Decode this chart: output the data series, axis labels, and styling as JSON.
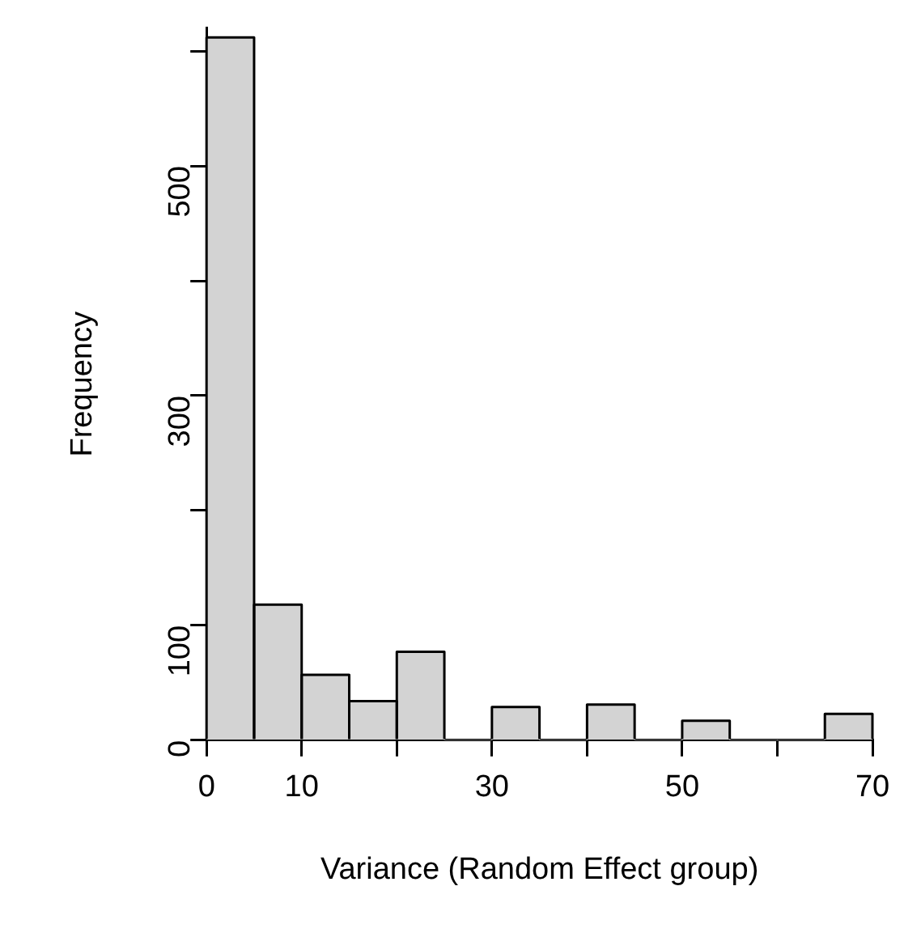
{
  "chart_data": {
    "type": "histogram",
    "xlabel": "Variance (Random Effect group)",
    "ylabel": "Frequency",
    "bins": [
      0,
      5,
      10,
      15,
      20,
      25,
      30,
      35,
      40,
      45,
      50,
      55,
      60,
      65,
      70
    ],
    "values": [
      612,
      118,
      57,
      34,
      77,
      0,
      29,
      0,
      31,
      0,
      17,
      0,
      0,
      23
    ],
    "color": "#d3d3d3",
    "xlim": [
      0,
      70
    ],
    "xticks": [
      0,
      10,
      {
        "value": 20,
        "label": null
      },
      30,
      {
        "value": 40,
        "label": null
      },
      50,
      {
        "value": 60,
        "label": null
      },
      70
    ],
    "ylim": [
      0,
      620
    ],
    "yticks": [
      0,
      100,
      {
        "value": 200,
        "label": null
      },
      300,
      {
        "value": 400,
        "label": null
      },
      500,
      {
        "value": 600,
        "label": null
      }
    ],
    "grid": false
  }
}
